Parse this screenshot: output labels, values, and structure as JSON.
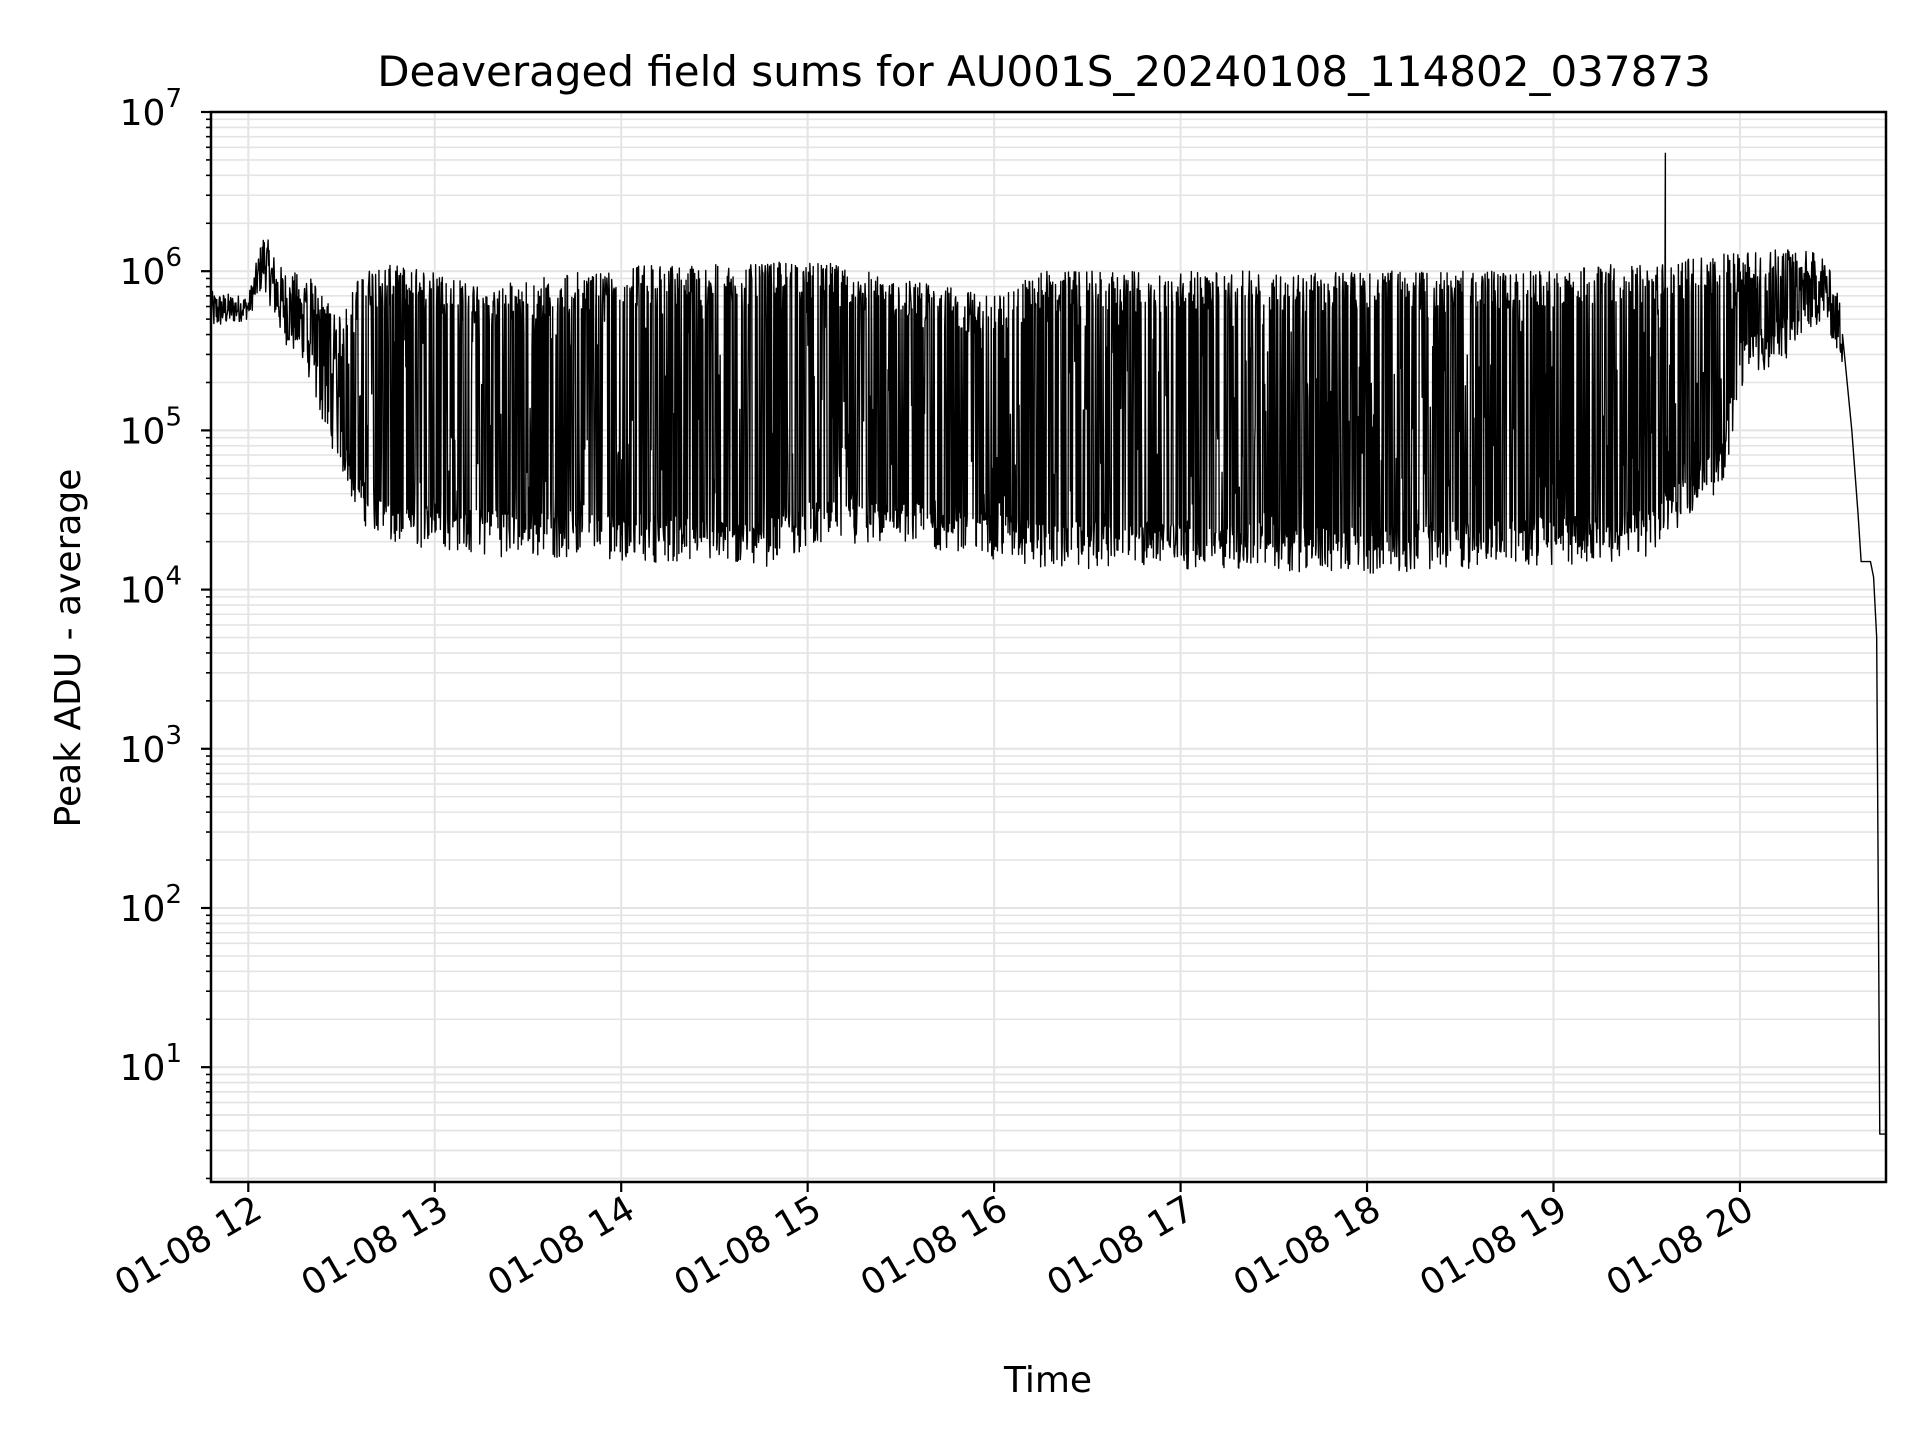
{
  "chart_data": {
    "type": "line",
    "title": "Deaveraged field sums for AU001S_20240108_114802_037873",
    "xlabel": "Time",
    "ylabel": "Peak ADU - average",
    "yscale": "log",
    "ylim": [
      1.9,
      10000000
    ],
    "xlim": [
      "2024-01-08 11:48",
      "2024-01-08 20:47"
    ],
    "grid": true,
    "line_color": "#000000",
    "x_ticks": [
      {
        "label": "01-08 12",
        "time": "2024-01-08 12:00"
      },
      {
        "label": "01-08 13",
        "time": "2024-01-08 13:00"
      },
      {
        "label": "01-08 14",
        "time": "2024-01-08 14:00"
      },
      {
        "label": "01-08 15",
        "time": "2024-01-08 15:00"
      },
      {
        "label": "01-08 16",
        "time": "2024-01-08 16:00"
      },
      {
        "label": "01-08 17",
        "time": "2024-01-08 17:00"
      },
      {
        "label": "01-08 18",
        "time": "2024-01-08 18:00"
      },
      {
        "label": "01-08 19",
        "time": "2024-01-08 19:00"
      },
      {
        "label": "01-08 20",
        "time": "2024-01-08 20:00"
      }
    ],
    "y_ticks": [
      {
        "base": "10",
        "exp": "1",
        "value": 10
      },
      {
        "base": "10",
        "exp": "2",
        "value": 100
      },
      {
        "base": "10",
        "exp": "3",
        "value": 1000
      },
      {
        "base": "10",
        "exp": "4",
        "value": 10000
      },
      {
        "base": "10",
        "exp": "5",
        "value": 100000
      },
      {
        "base": "10",
        "exp": "6",
        "value": 1000000
      },
      {
        "base": "10",
        "exp": "7",
        "value": 10000000
      }
    ],
    "envelope": {
      "description_units": "time, lower bound, upper bound (ADU)",
      "points": [
        [
          "2024-01-08 11:48",
          420000,
          750000
        ],
        [
          "2024-01-08 12:00",
          500000,
          700000
        ],
        [
          "2024-01-08 12:05",
          800000,
          1800000
        ],
        [
          "2024-01-08 12:10",
          400000,
          1100000
        ],
        [
          "2024-01-08 12:20",
          200000,
          900000
        ],
        [
          "2024-01-08 12:30",
          60000,
          500000
        ],
        [
          "2024-01-08 12:36",
          30000,
          1000000
        ],
        [
          "2024-01-08 12:45",
          20000,
          1100000
        ],
        [
          "2024-01-08 13:00",
          20000,
          1000000
        ],
        [
          "2024-01-08 13:15",
          18000,
          800000
        ],
        [
          "2024-01-08 14:00",
          17000,
          1100000
        ],
        [
          "2024-01-08 14:45",
          15000,
          1100000
        ],
        [
          "2024-01-08 15:00",
          20000,
          1200000
        ],
        [
          "2024-01-08 15:30",
          20000,
          900000
        ],
        [
          "2024-01-08 16:00",
          17000,
          700000
        ],
        [
          "2024-01-08 16:15",
          15000,
          1000000
        ],
        [
          "2024-01-08 17:00",
          15000,
          1000000
        ],
        [
          "2024-01-08 18:00",
          14000,
          1000000
        ],
        [
          "2024-01-08 19:00",
          16000,
          1000000
        ],
        [
          "2024-01-08 19:15",
          16000,
          1100000
        ],
        [
          "2024-01-08 19:30",
          18000,
          1100000
        ],
        [
          "2024-01-08 19:55",
          50000,
          1300000
        ],
        [
          "2024-01-08 20:00",
          200000,
          1300000
        ],
        [
          "2024-01-08 20:15",
          300000,
          1400000
        ],
        [
          "2024-01-08 20:27",
          500000,
          1300000
        ],
        [
          "2024-01-08 20:33",
          250000,
          600000
        ]
      ]
    },
    "spike": {
      "time": "2024-01-08 19:36",
      "value": 5500000
    },
    "tail": [
      [
        "2024-01-08 20:33",
        400000
      ],
      [
        "2024-01-08 20:36",
        100000
      ],
      [
        "2024-01-08 20:38",
        30000
      ],
      [
        "2024-01-08 20:39",
        15000
      ],
      [
        "2024-01-08 20:42",
        15000
      ],
      [
        "2024-01-08 20:43",
        12000
      ],
      [
        "2024-01-08 20:44",
        5000
      ],
      [
        "2024-01-08 20:45",
        3.8
      ],
      [
        "2024-01-08 20:47",
        3.8
      ]
    ]
  }
}
